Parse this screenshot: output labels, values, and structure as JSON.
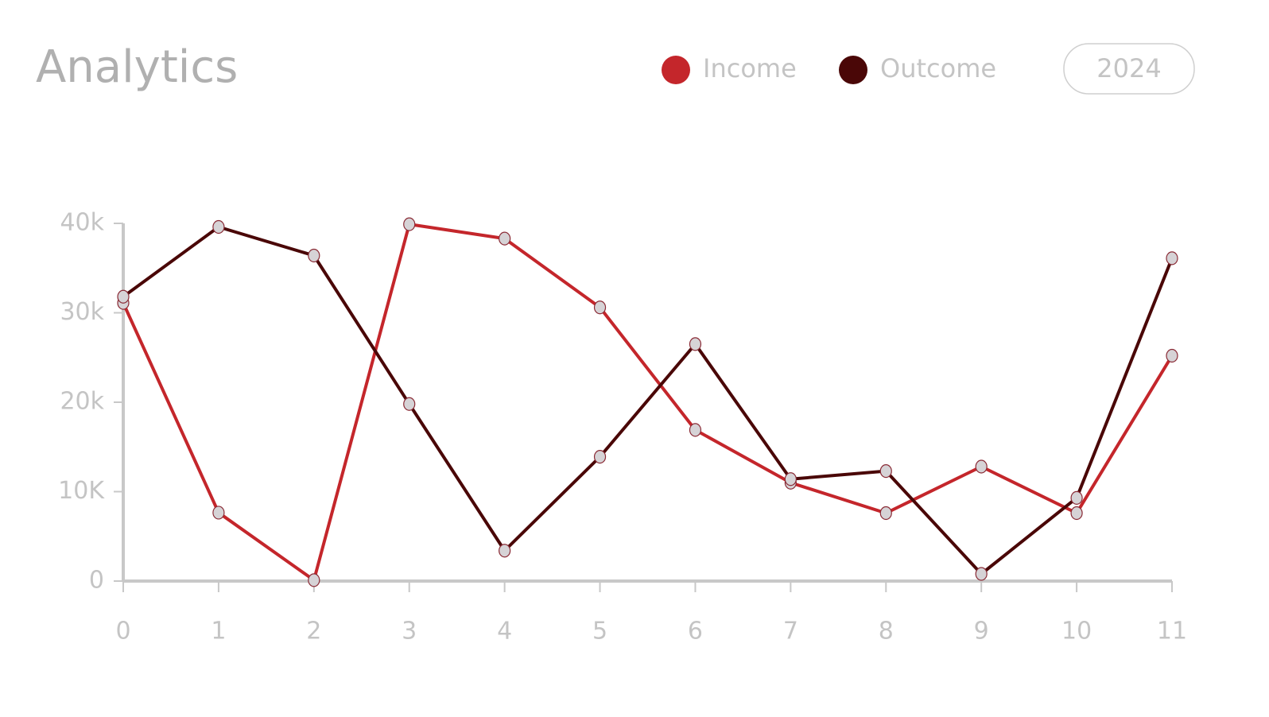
{
  "chart_data": {
    "type": "line",
    "title": "Analytics",
    "x": [
      0,
      1,
      2,
      3,
      4,
      5,
      6,
      7,
      8,
      9,
      10,
      11
    ],
    "xlim": [
      0,
      11
    ],
    "xticks": [
      0,
      1,
      2,
      3,
      4,
      5,
      6,
      7,
      8,
      9,
      10,
      11
    ],
    "ylim": [
      0,
      40000
    ],
    "yticks": [
      0,
      {
        "value": 10000,
        "label": "10K"
      },
      {
        "value": 20000,
        "label": "20k"
      },
      {
        "value": 30000,
        "label": "30k"
      },
      {
        "value": 40000,
        "label": "40k"
      }
    ],
    "series": [
      {
        "name": "Income",
        "color": "#c4262b",
        "values": [
          31100,
          7650,
          100,
          39900,
          38300,
          30600,
          16900,
          11000,
          7600,
          12800,
          7600,
          25200
        ]
      },
      {
        "name": "Outcome",
        "color": "#4a0707",
        "values": [
          31800,
          39600,
          36400,
          19800,
          3400,
          13900,
          26500,
          11400,
          12300,
          800,
          9300,
          36100
        ]
      }
    ]
  },
  "controls": {
    "year": "2024"
  }
}
